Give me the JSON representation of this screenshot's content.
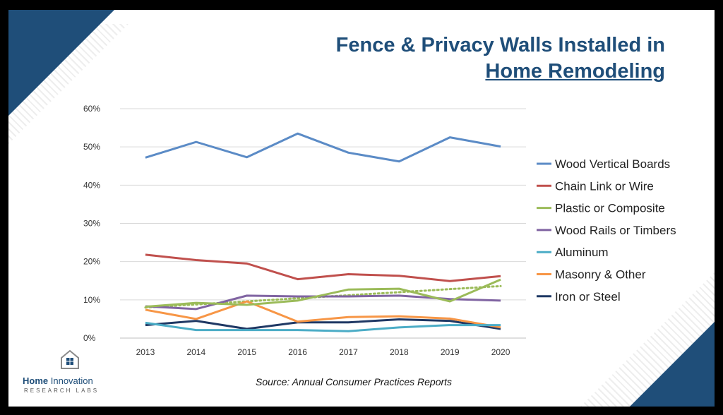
{
  "slide": {
    "title_line1": "Fence & Privacy Walls Installed in",
    "title_line2": "Home Remodeling",
    "source": "Source:  Annual Consumer Practices Reports",
    "logo_name_bold": "Home",
    "logo_name_rest": "Innovation",
    "logo_sub": "RESEARCH LABS",
    "accent_color": "#1f4e79"
  },
  "chart_data": {
    "type": "line",
    "title": "",
    "xlabel": "",
    "ylabel": "",
    "categories": [
      "2013",
      "2014",
      "2015",
      "2016",
      "2017",
      "2018",
      "2019",
      "2020"
    ],
    "ylim": [
      0,
      60
    ],
    "yticks": [
      "0%",
      "10%",
      "20%",
      "30%",
      "40%",
      "50%",
      "60%"
    ],
    "grid": true,
    "legend_position": "right",
    "series": [
      {
        "name": "Wood Vertical Boards",
        "color": "#5b8bc6",
        "values": [
          47.2,
          51.3,
          47.3,
          53.5,
          48.5,
          46.2,
          52.5,
          50.1
        ]
      },
      {
        "name": "Chain Link or Wire",
        "color": "#c0504d",
        "values": [
          21.8,
          20.4,
          19.5,
          15.4,
          16.7,
          16.3,
          14.9,
          16.2
        ]
      },
      {
        "name": "Plastic or Composite",
        "color": "#9bbb59",
        "values": [
          8.2,
          9.2,
          8.7,
          9.8,
          12.7,
          12.9,
          9.6,
          15.3
        ]
      },
      {
        "name": "Wood Rails or Timbers",
        "color": "#8064a2",
        "values": [
          8.3,
          7.6,
          11.1,
          10.9,
          10.9,
          11.1,
          10.2,
          9.8
        ]
      },
      {
        "name": "Aluminum",
        "color": "#4bacc6",
        "values": [
          4.0,
          2.1,
          2.1,
          2.1,
          1.8,
          2.8,
          3.4,
          3.4
        ]
      },
      {
        "name": "Masonry & Other",
        "color": "#f79646",
        "values": [
          7.4,
          5.0,
          9.6,
          4.3,
          5.5,
          5.7,
          5.1,
          2.8
        ]
      },
      {
        "name": "Iron or Steel",
        "color": "#1f3864",
        "values": [
          3.4,
          4.5,
          2.4,
          4.1,
          4.1,
          4.9,
          4.5,
          2.4
        ]
      }
    ],
    "trendline": {
      "series": "Plastic or Composite",
      "style": "dotted",
      "color": "#9bbb59"
    }
  }
}
